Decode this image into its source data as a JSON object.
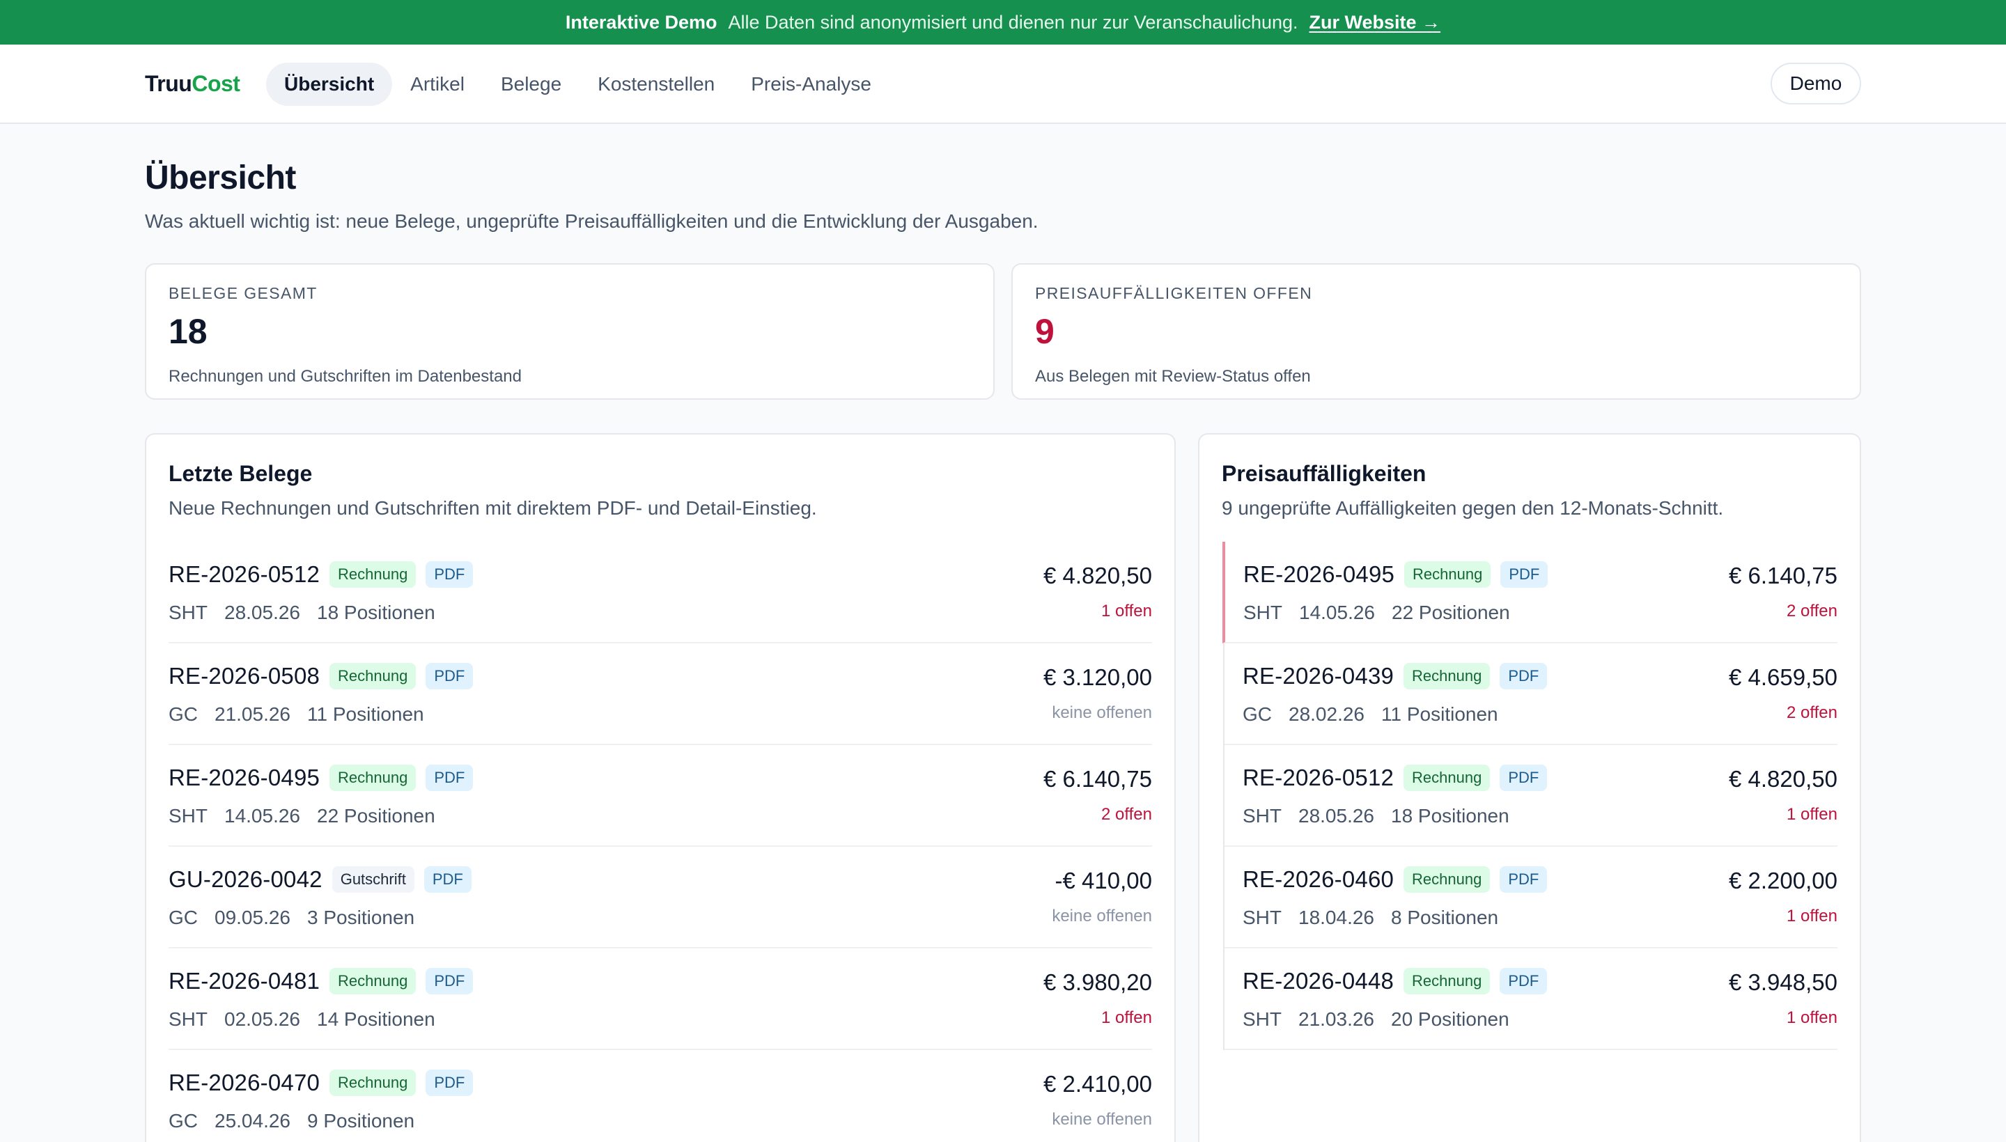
{
  "banner": {
    "strong": "Interaktive Demo",
    "text": "Alle Daten sind anonymisiert und dienen nur zur Veranschaulichung.",
    "link": "Zur Website →",
    "color": "#15904f"
  },
  "nav": {
    "brand_part1": "Truu",
    "brand_part2": "Cost",
    "items": [
      {
        "label": "Übersicht",
        "active": true
      },
      {
        "label": "Artikel"
      },
      {
        "label": "Belege"
      },
      {
        "label": "Kostenstellen"
      },
      {
        "label": "Preis-Analyse"
      }
    ],
    "demo_label": "Demo"
  },
  "header": {
    "title": "Übersicht",
    "subtitle": "Was aktuell wichtig ist: neue Belege, ungeprüfte Preisauffälligkeiten und die Entwicklung der Ausgaben."
  },
  "stats": [
    {
      "label": "BELEGE GESAMT",
      "value": "18",
      "desc": "Rechnungen und Gutschriften im Datenbestand"
    },
    {
      "label": "PREISAUFFÄLLIGKEITEN OFFEN",
      "value": "9",
      "desc": "Aus Belegen mit Review-Status offen",
      "color": "#be123c"
    }
  ],
  "recent": {
    "title": "Letzte Belege",
    "subtitle": "Neue Rechnungen und Gutschriften mit direktem PDF- und Detail-Einstieg.",
    "rows": [
      {
        "id": "RE-2026-0512",
        "type": "Rechnung",
        "pdf": "PDF",
        "supplier": "SHT",
        "date": "28.05.26",
        "positions": "18 Positionen",
        "amount": "€ 4.820,50",
        "open": "1 offen"
      },
      {
        "id": "RE-2026-0508",
        "type": "Rechnung",
        "pdf": "PDF",
        "supplier": "GC",
        "date": "21.05.26",
        "positions": "11 Positionen",
        "amount": "€ 3.120,00",
        "open": "keine offenen"
      },
      {
        "id": "RE-2026-0495",
        "type": "Rechnung",
        "pdf": "PDF",
        "supplier": "SHT",
        "date": "14.05.26",
        "positions": "22 Positionen",
        "amount": "€ 6.140,75",
        "open": "2 offen"
      },
      {
        "id": "GU-2026-0042",
        "type": "Gutschrift",
        "pdf": "PDF",
        "supplier": "GC",
        "date": "09.05.26",
        "positions": "3 Positionen",
        "amount": "-€ 410,00",
        "open": "keine offenen"
      },
      {
        "id": "RE-2026-0481",
        "type": "Rechnung",
        "pdf": "PDF",
        "supplier": "SHT",
        "date": "02.05.26",
        "positions": "14 Positionen",
        "amount": "€ 3.980,20",
        "open": "1 offen"
      },
      {
        "id": "RE-2026-0470",
        "type": "Rechnung",
        "pdf": "PDF",
        "supplier": "GC",
        "date": "25.04.26",
        "positions": "9 Positionen",
        "amount": "€ 2.410,00",
        "open": "keine offenen"
      }
    ]
  },
  "anomalies": {
    "title": "Preisauffälligkeiten",
    "subtitle": "9 ungeprüfte Auffälligkeiten gegen den 12-Monats-Schnitt.",
    "rows": [
      {
        "id": "RE-2026-0495",
        "type": "Rechnung",
        "pdf": "PDF",
        "supplier": "SHT",
        "date": "14.05.26",
        "positions": "22 Positionen",
        "amount": "€ 6.140,75",
        "open": "2 offen"
      },
      {
        "id": "RE-2026-0439",
        "type": "Rechnung",
        "pdf": "PDF",
        "supplier": "GC",
        "date": "28.02.26",
        "positions": "11 Positionen",
        "amount": "€ 4.659,50",
        "open": "2 offen"
      },
      {
        "id": "RE-2026-0512",
        "type": "Rechnung",
        "pdf": "PDF",
        "supplier": "SHT",
        "date": "28.05.26",
        "positions": "18 Positionen",
        "amount": "€ 4.820,50",
        "open": "1 offen"
      },
      {
        "id": "RE-2026-0460",
        "type": "Rechnung",
        "pdf": "PDF",
        "supplier": "SHT",
        "date": "18.04.26",
        "positions": "8 Positionen",
        "amount": "€ 2.200,00",
        "open": "1 offen"
      },
      {
        "id": "RE-2026-0448",
        "type": "Rechnung",
        "pdf": "PDF",
        "supplier": "SHT",
        "date": "21.03.26",
        "positions": "20 Positionen",
        "amount": "€ 3.948,50",
        "open": "1 offen"
      }
    ]
  }
}
